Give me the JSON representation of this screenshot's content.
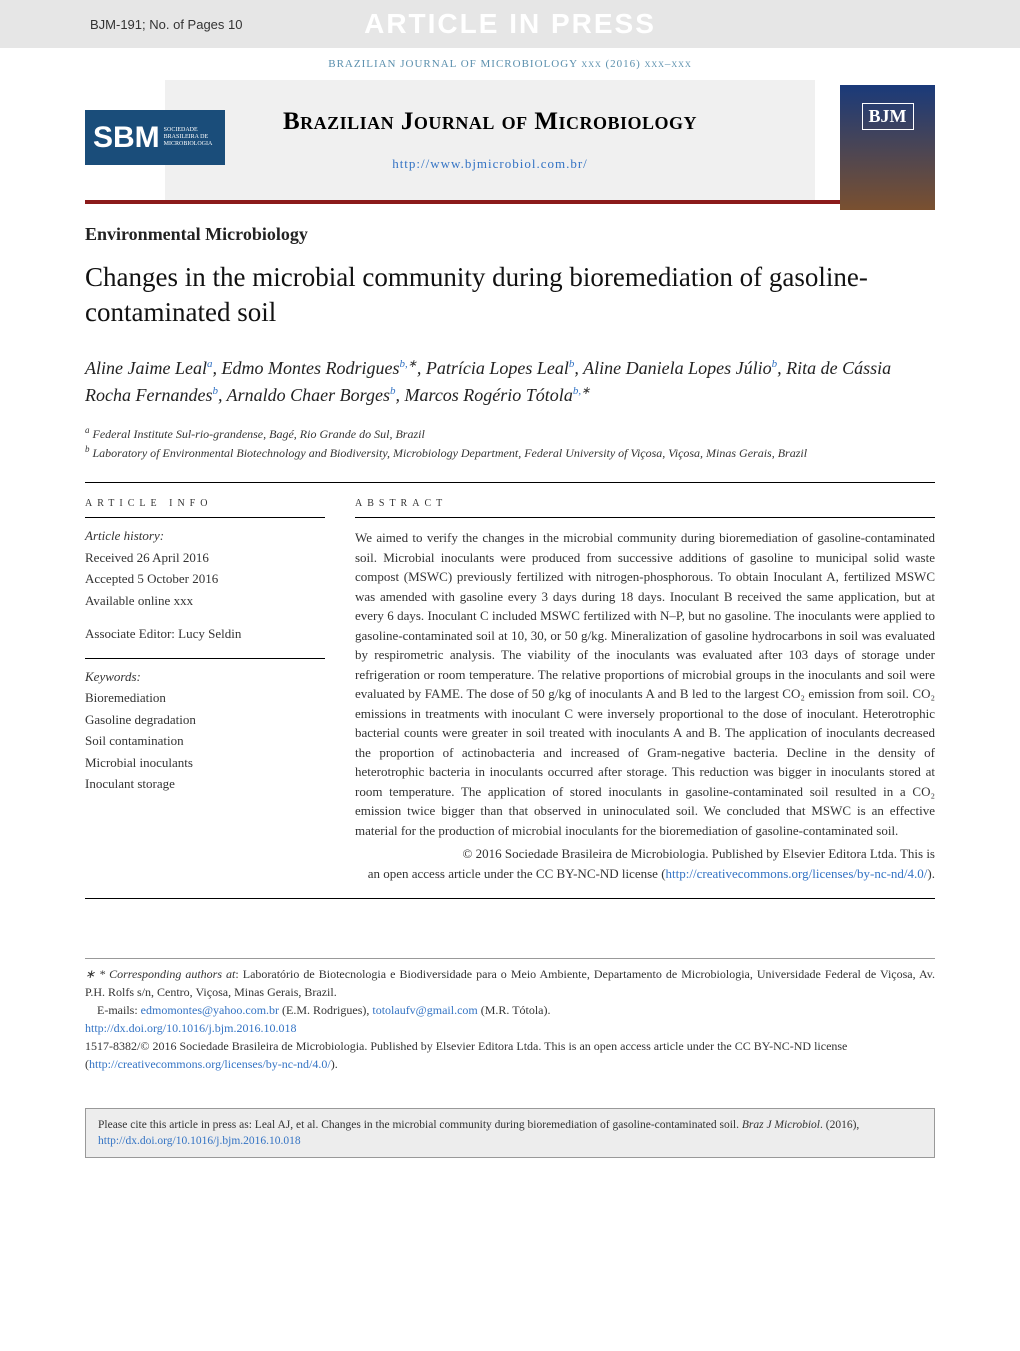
{
  "top_banner": {
    "model_ref": "BJM-191; No. of Pages 10",
    "aip_label": "ARTICLE IN PRESS"
  },
  "journal_ref": "BRAZILIAN JOURNAL OF MICROBIOLOGY xxx (2016) xxx–xxx",
  "header": {
    "journal_name": "Brazilian Journal of Microbiology",
    "journal_url": "http://www.bjmicrobiol.com.br/",
    "sbm_main": "SBM",
    "sbm_sub": "Sociedade Brasileira de Microbiologia",
    "cover_label": "BJM"
  },
  "section_label": "Environmental Microbiology",
  "title": "Changes in the microbial community during bioremediation of gasoline-contaminated soil",
  "authors": {
    "a1_name": "Aline Jaime Leal",
    "a1_sup": "a",
    "a2_name": "Edmo Montes Rodrigues",
    "a2_sup": "b,",
    "a3_name": "Patrícia Lopes Leal",
    "a3_sup": "b",
    "a4_name": "Aline Daniela Lopes Júlio",
    "a4_sup": "b",
    "a5_name": "Rita de Cássia Rocha Fernandes",
    "a5_sup": "b",
    "a6_name": "Arnaldo Chaer Borges",
    "a6_sup": "b",
    "a7_name": "Marcos Rogério Tótola",
    "a7_sup": "b,"
  },
  "affiliations": {
    "a_sup": "a",
    "a_text": " Federal Institute Sul-rio-grandense, Bagé, Rio Grande do Sul, Brazil",
    "b_sup": "b",
    "b_text": " Laboratory of Environmental Biotechnology and Biodiversity, Microbiology Department, Federal University of Viçosa, Viçosa, Minas Gerais, Brazil"
  },
  "article_info": {
    "heading": "article info",
    "history_label": "Article history:",
    "received": "Received 26 April 2016",
    "accepted": "Accepted 5 October 2016",
    "online": "Available online xxx",
    "editor": "Associate Editor: Lucy Seldin",
    "keywords_label": "Keywords:",
    "keywords": [
      "Bioremediation",
      "Gasoline degradation",
      "Soil contamination",
      "Microbial inoculants",
      "Inoculant storage"
    ]
  },
  "abstract": {
    "heading": "abstract",
    "text": "We aimed to verify the changes in the microbial community during bioremediation of gasoline-contaminated soil. Microbial inoculants were produced from successive additions of gasoline to municipal solid waste compost (MSWC) previously fertilized with nitrogen-phosphorous. To obtain Inoculant A, fertilized MSWC was amended with gasoline every 3 days during 18 days. Inoculant B received the same application, but at every 6 days. Inoculant C included MSWC fertilized with N–P, but no gasoline. The inoculants were applied to gasoline-contaminated soil at 10, 30, or 50 g/kg. Mineralization of gasoline hydrocarbons in soil was evaluated by respirometric analysis. The viability of the inoculants was evaluated after 103 days of storage under refrigeration or room temperature. The relative proportions of microbial groups in the inoculants and soil were evaluated by FAME. The dose of 50 g/kg of inoculants A and B led to the largest CO₂ emission from soil. CO₂ emissions in treatments with inoculant C were inversely proportional to the dose of inoculant. Heterotrophic bacterial counts were greater in soil treated with inoculants A and B. The application of inoculants decreased the proportion of actinobacteria and increased of Gram-negative bacteria. Decline in the density of heterotrophic bacteria in inoculants occurred after storage. This reduction was bigger in inoculants stored at room temperature. The application of stored inoculants in gasoline-contaminated soil resulted in a CO₂ emission twice bigger than that observed in uninoculated soil. We concluded that MSWC is an effective material for the production of microbial inoculants for the bioremediation of gasoline-contaminated soil.",
    "copyright_line1": "© 2016 Sociedade Brasileira de Microbiologia. Published by Elsevier Editora Ltda. This is",
    "copyright_line2": "an open access article under the CC BY-NC-ND license (",
    "license_url": "http://creativecommons.org/licenses/by-nc-nd/4.0/",
    "copyright_close": ")."
  },
  "footer": {
    "corresponding_label": "* Corresponding authors at",
    "corresponding_text": ": Laboratório de Biotecnologia e Biodiversidade para o Meio Ambiente, Departamento de Microbiologia, Universidade Federal de Viçosa, Av. P.H. Rolfs s/n, Centro, Viçosa, Minas Gerais, Brazil.",
    "emails_label": "E-mails: ",
    "email1": "edmomontes@yahoo.com.br",
    "email1_name": " (E.M. Rodrigues), ",
    "email2": "totolaufv@gmail.com",
    "email2_name": " (M.R. Tótola).",
    "doi": "http://dx.doi.org/10.1016/j.bjm.2016.10.018",
    "issn_line": "1517-8382/© 2016 Sociedade Brasileira de Microbiologia. Published by Elsevier Editora Ltda. This is an open access article under the CC BY-NC-ND license (",
    "license_url": "http://creativecommons.org/licenses/by-nc-nd/4.0/",
    "issn_close": ")."
  },
  "cite_box": {
    "prefix": "Please cite this article in press as: Leal AJ, et al. Changes in the microbial community during bioremediation of gasoline-contaminated soil. ",
    "journal_ital": "Braz J Microbiol",
    "year_text": ". (2016), ",
    "doi": "http://dx.doi.org/10.1016/j.bjm.2016.10.018"
  }
}
